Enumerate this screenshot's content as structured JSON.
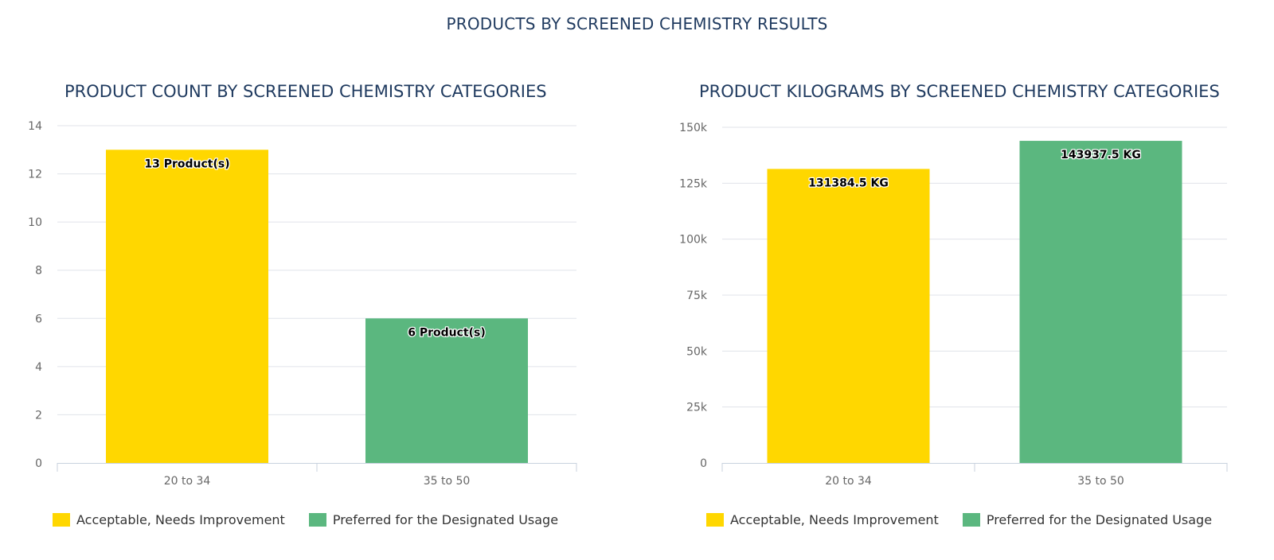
{
  "page": {
    "title": "PRODUCTS BY SCREENED CHEMISTRY RESULTS"
  },
  "colors": {
    "acceptable": "#FFD700",
    "preferred": "#5BB77F",
    "grid": "#E0E3EA",
    "axis": "#C8D2DE",
    "title": "#1f3a5f"
  },
  "legend": {
    "acceptable": "Acceptable, Needs Improvement",
    "preferred": "Preferred for the Designated Usage"
  },
  "chart_data": [
    {
      "type": "bar",
      "title": "PRODUCT COUNT BY SCREENED CHEMISTRY CATEGORIES",
      "categories": [
        "20 to 34",
        "35 to 50"
      ],
      "series": [
        {
          "name": "Acceptable, Needs Improvement",
          "values": [
            13,
            null
          ]
        },
        {
          "name": "Preferred for the Designated Usage",
          "values": [
            null,
            6
          ]
        }
      ],
      "data_labels": [
        "13 Product(s)",
        "6 Product(s)"
      ],
      "ylim": [
        0,
        14
      ],
      "yticks": [
        0,
        2,
        4,
        6,
        8,
        10,
        12,
        14
      ],
      "ytick_labels": [
        "0",
        "2",
        "4",
        "6",
        "8",
        "10",
        "12",
        "14"
      ],
      "xlabel": "",
      "ylabel": "",
      "legend": "bottom-left"
    },
    {
      "type": "bar",
      "title": "PRODUCT KILOGRAMS BY SCREENED CHEMISTRY CATEGORIES",
      "categories": [
        "20 to 34",
        "35 to 50"
      ],
      "series": [
        {
          "name": "Acceptable, Needs Improvement",
          "values": [
            131384.5,
            null
          ]
        },
        {
          "name": "Preferred for the Designated Usage",
          "values": [
            null,
            143937.5
          ]
        }
      ],
      "data_labels": [
        "131384.5 KG",
        "143937.5 KG"
      ],
      "ylim": [
        0,
        150000
      ],
      "yticks": [
        0,
        25000,
        50000,
        75000,
        100000,
        125000,
        150000
      ],
      "ytick_labels": [
        "0",
        "25k",
        "50k",
        "75k",
        "100k",
        "125k",
        "150k"
      ],
      "xlabel": "",
      "ylabel": "",
      "legend": "bottom-left"
    }
  ]
}
